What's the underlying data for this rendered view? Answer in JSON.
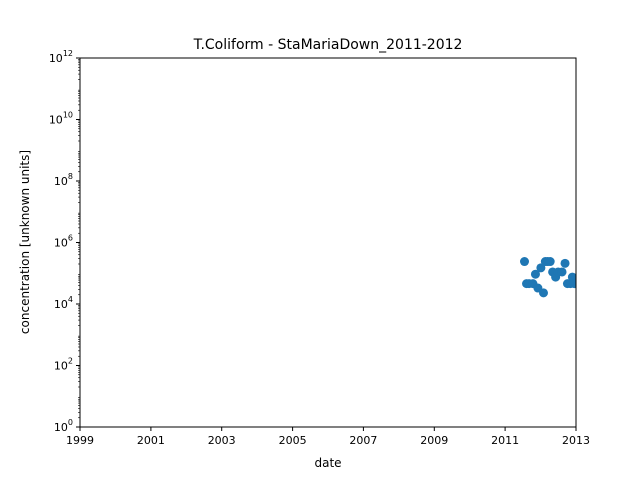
{
  "chart_data": {
    "type": "scatter",
    "title": "T.Coliform - StaMariaDown_2011-2012",
    "xlabel": "date",
    "ylabel": "concentration [unknown units]",
    "xlim": [
      "1999-01-01",
      "2013-01-01"
    ],
    "ylim": [
      1,
      1000000000000
    ],
    "yscale": "log",
    "grid": false,
    "x_ticks": [
      "1999",
      "2001",
      "2003",
      "2005",
      "2007",
      "2009",
      "2011",
      "2013"
    ],
    "y_ticks": [
      {
        "value": 1,
        "base": "10",
        "exp": "0"
      },
      {
        "value": 100,
        "base": "10",
        "exp": "2"
      },
      {
        "value": 10000,
        "base": "10",
        "exp": "4"
      },
      {
        "value": 1000000,
        "base": "10",
        "exp": "6"
      },
      {
        "value": 100000000,
        "base": "10",
        "exp": "8"
      },
      {
        "value": 10000000000,
        "base": "10",
        "exp": "10"
      },
      {
        "value": 1000000000000,
        "base": "10",
        "exp": "12"
      }
    ],
    "marker_color": "#1f77b4",
    "points": [
      {
        "x": "2011-07-20",
        "y": 240000
      },
      {
        "x": "2011-08-10",
        "y": 46000
      },
      {
        "x": "2011-09-05",
        "y": 46000
      },
      {
        "x": "2011-10-15",
        "y": 46000
      },
      {
        "x": "2011-11-10",
        "y": 93000
      },
      {
        "x": "2011-12-05",
        "y": 33000
      },
      {
        "x": "2012-01-05",
        "y": 150000
      },
      {
        "x": "2012-02-01",
        "y": 23000
      },
      {
        "x": "2012-02-20",
        "y": 240000
      },
      {
        "x": "2012-03-15",
        "y": 240000
      },
      {
        "x": "2012-04-10",
        "y": 240000
      },
      {
        "x": "2012-05-05",
        "y": 110000
      },
      {
        "x": "2012-06-05",
        "y": 75000
      },
      {
        "x": "2012-07-01",
        "y": 110000
      },
      {
        "x": "2012-08-10",
        "y": 110000
      },
      {
        "x": "2012-09-10",
        "y": 210000
      },
      {
        "x": "2012-10-05",
        "y": 46000
      },
      {
        "x": "2012-11-05",
        "y": 46000
      },
      {
        "x": "2012-11-25",
        "y": 75000
      },
      {
        "x": "2012-12-15",
        "y": 46000
      }
    ]
  }
}
